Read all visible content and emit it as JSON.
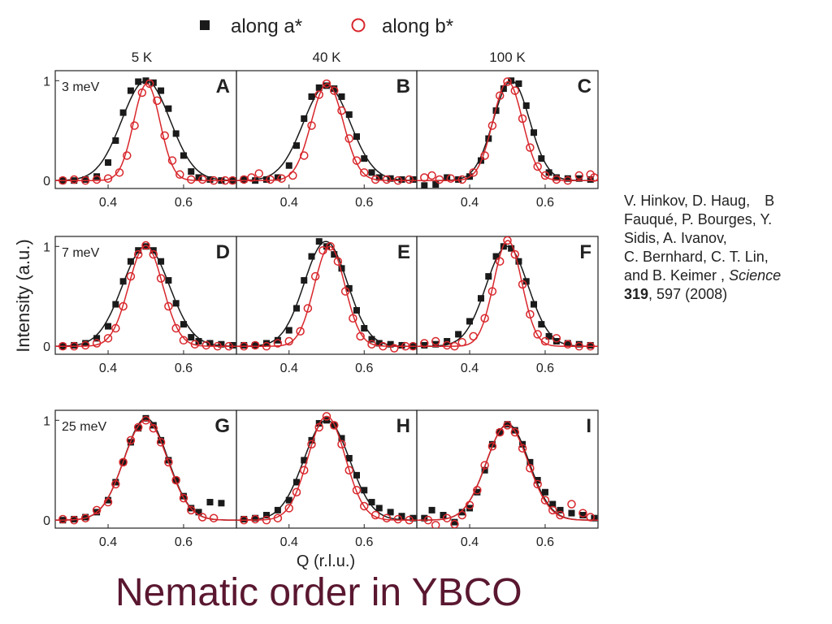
{
  "legend": {
    "series_a_label": "along a*",
    "series_b_label": "along b*"
  },
  "colors": {
    "series_a": "#1a1a1a",
    "series_b": "#d8262b",
    "title": "#5a1730"
  },
  "reference": {
    "line1": "V. Hinkov, D. Haug,",
    "line1_tail": "B",
    "line2": "Fauqué, P. Bourges, Y.",
    "line3": "Sidis, A. Ivanov,",
    "line4": "C. Bernhard, C. T. Lin,",
    "line5_pre": "and B. Keimer ,",
    "line5_journal": "Science",
    "line6_volume": "319",
    "line6_rest": ", 597 (2008)"
  },
  "slide_title": "Nematic order in YBCO",
  "chart_data": {
    "type": "scatter",
    "title": "",
    "xlabel": "Q (r.l.u.)",
    "ylabel": "Intensity (a.u.)",
    "xlim": [
      0.26,
      0.74
    ],
    "ylim": [
      -0.08,
      1.1
    ],
    "xticks": [
      0.4,
      0.6
    ],
    "yticks": [
      0,
      1
    ],
    "legend_position": "top-center",
    "grid": false,
    "column_labels": [
      "5 K",
      "40 K",
      "100 K"
    ],
    "row_labels": [
      "3 meV",
      "7 meV",
      "25 meV"
    ],
    "panels": [
      {
        "label": "A",
        "temperature": "5 K",
        "energy": "3 meV",
        "series": [
          {
            "name": "along a*",
            "marker": "filled-square",
            "x": [
              0.28,
              0.31,
              0.34,
              0.37,
              0.4,
              0.42,
              0.44,
              0.46,
              0.48,
              0.5,
              0.52,
              0.54,
              0.56,
              0.58,
              0.6,
              0.62,
              0.64,
              0.67,
              0.7,
              0.73
            ],
            "y": [
              0.0,
              0.0,
              0.01,
              0.04,
              0.18,
              0.4,
              0.68,
              0.9,
              0.99,
              1.0,
              0.98,
              0.9,
              0.72,
              0.47,
              0.25,
              0.09,
              0.03,
              0.01,
              0.0,
              0.0
            ]
          },
          {
            "name": "along b*",
            "marker": "open-circle",
            "x": [
              0.28,
              0.31,
              0.34,
              0.37,
              0.4,
              0.43,
              0.45,
              0.47,
              0.49,
              0.51,
              0.53,
              0.55,
              0.57,
              0.59,
              0.62,
              0.65,
              0.68,
              0.71,
              0.73
            ],
            "y": [
              0.0,
              0.01,
              0.0,
              0.01,
              0.02,
              0.08,
              0.25,
              0.55,
              0.88,
              0.97,
              0.8,
              0.45,
              0.2,
              0.06,
              0.01,
              0.01,
              0.0,
              0.0,
              0.0
            ]
          }
        ]
      },
      {
        "label": "B",
        "temperature": "40 K",
        "energy": "3 meV",
        "series": [
          {
            "name": "along a*",
            "marker": "filled-square",
            "x": [
              0.28,
              0.31,
              0.34,
              0.37,
              0.4,
              0.42,
              0.44,
              0.46,
              0.48,
              0.5,
              0.52,
              0.54,
              0.56,
              0.58,
              0.6,
              0.62,
              0.64,
              0.67,
              0.7,
              0.73
            ],
            "y": [
              0.01,
              0.0,
              0.01,
              0.03,
              0.15,
              0.35,
              0.62,
              0.84,
              0.93,
              0.95,
              0.92,
              0.84,
              0.66,
              0.44,
              0.22,
              0.08,
              0.03,
              0.02,
              0.01,
              0.01
            ]
          },
          {
            "name": "along b*",
            "marker": "open-circle",
            "x": [
              0.28,
              0.3,
              0.32,
              0.35,
              0.38,
              0.41,
              0.44,
              0.46,
              0.48,
              0.5,
              0.52,
              0.54,
              0.56,
              0.58,
              0.6,
              0.63,
              0.66,
              0.69,
              0.72
            ],
            "y": [
              0.01,
              0.03,
              0.07,
              0.01,
              0.02,
              0.05,
              0.25,
              0.55,
              0.86,
              0.97,
              0.9,
              0.7,
              0.42,
              0.2,
              0.08,
              0.01,
              0.01,
              0.0,
              0.01
            ]
          }
        ]
      },
      {
        "label": "C",
        "temperature": "100 K",
        "energy": "3 meV",
        "series": [
          {
            "name": "along a*",
            "marker": "filled-square",
            "x": [
              0.28,
              0.31,
              0.34,
              0.37,
              0.4,
              0.43,
              0.45,
              0.47,
              0.49,
              0.51,
              0.53,
              0.55,
              0.57,
              0.59,
              0.61,
              0.63,
              0.66,
              0.69,
              0.72
            ],
            "y": [
              -0.05,
              -0.04,
              0.03,
              0.01,
              0.04,
              0.2,
              0.42,
              0.7,
              0.92,
              1.0,
              0.97,
              0.75,
              0.48,
              0.22,
              0.08,
              0.03,
              0.02,
              0.02,
              0.01
            ]
          },
          {
            "name": "along b*",
            "marker": "open-circle",
            "x": [
              0.28,
              0.3,
              0.32,
              0.35,
              0.38,
              0.41,
              0.44,
              0.46,
              0.48,
              0.5,
              0.52,
              0.54,
              0.56,
              0.58,
              0.6,
              0.63,
              0.66,
              0.69,
              0.72,
              0.73
            ],
            "y": [
              0.03,
              0.05,
              0.01,
              0.02,
              0.01,
              0.08,
              0.25,
              0.55,
              0.85,
              0.99,
              0.9,
              0.62,
              0.33,
              0.14,
              0.05,
              0.01,
              0.0,
              0.05,
              0.06,
              0.03
            ]
          }
        ]
      },
      {
        "label": "D",
        "temperature": "5 K",
        "energy": "7 meV",
        "series": [
          {
            "name": "along a*",
            "marker": "filled-square",
            "x": [
              0.28,
              0.31,
              0.34,
              0.37,
              0.4,
              0.42,
              0.44,
              0.46,
              0.48,
              0.5,
              0.52,
              0.54,
              0.56,
              0.58,
              0.6,
              0.62,
              0.64,
              0.67,
              0.7,
              0.73
            ],
            "y": [
              0.0,
              0.01,
              0.03,
              0.08,
              0.2,
              0.42,
              0.65,
              0.85,
              0.96,
              1.0,
              0.96,
              0.85,
              0.66,
              0.43,
              0.22,
              0.09,
              0.05,
              0.03,
              0.02,
              0.01
            ]
          },
          {
            "name": "along b*",
            "marker": "open-circle",
            "x": [
              0.28,
              0.31,
              0.34,
              0.37,
              0.4,
              0.42,
              0.44,
              0.46,
              0.48,
              0.5,
              0.52,
              0.54,
              0.56,
              0.58,
              0.6,
              0.63,
              0.66,
              0.69,
              0.72
            ],
            "y": [
              0.0,
              0.0,
              0.01,
              0.03,
              0.08,
              0.18,
              0.4,
              0.7,
              0.92,
              1.01,
              0.92,
              0.68,
              0.4,
              0.18,
              0.06,
              0.02,
              0.01,
              0.0,
              0.0
            ]
          }
        ]
      },
      {
        "label": "E",
        "temperature": "40 K",
        "energy": "7 meV",
        "series": [
          {
            "name": "along a*",
            "marker": "filled-square",
            "x": [
              0.28,
              0.31,
              0.34,
              0.37,
              0.4,
              0.42,
              0.44,
              0.46,
              0.48,
              0.5,
              0.52,
              0.54,
              0.56,
              0.58,
              0.6,
              0.62,
              0.64,
              0.67,
              0.7,
              0.73
            ],
            "y": [
              0.01,
              0.01,
              0.03,
              0.06,
              0.16,
              0.38,
              0.66,
              0.9,
              1.05,
              1.0,
              0.92,
              0.78,
              0.58,
              0.36,
              0.18,
              0.07,
              0.03,
              0.02,
              0.01,
              0.0
            ]
          },
          {
            "name": "along b*",
            "marker": "open-circle",
            "x": [
              0.28,
              0.31,
              0.34,
              0.37,
              0.4,
              0.43,
              0.45,
              0.47,
              0.49,
              0.51,
              0.53,
              0.55,
              0.57,
              0.59,
              0.62,
              0.65,
              0.68,
              0.71,
              0.73
            ],
            "y": [
              0.0,
              0.01,
              0.0,
              0.03,
              0.05,
              0.15,
              0.38,
              0.7,
              0.96,
              1.0,
              0.85,
              0.55,
              0.28,
              0.1,
              0.02,
              0.0,
              -0.02,
              0.0,
              0.0
            ]
          }
        ]
      },
      {
        "label": "F",
        "temperature": "100 K",
        "energy": "7 meV",
        "series": [
          {
            "name": "along a*",
            "marker": "filled-square",
            "x": [
              0.28,
              0.31,
              0.34,
              0.37,
              0.4,
              0.43,
              0.45,
              0.47,
              0.49,
              0.51,
              0.53,
              0.55,
              0.57,
              0.59,
              0.61,
              0.63,
              0.66,
              0.69,
              0.72
            ],
            "y": [
              0.01,
              0.02,
              0.05,
              0.12,
              0.25,
              0.48,
              0.7,
              0.9,
              1.0,
              0.98,
              0.85,
              0.65,
              0.42,
              0.22,
              0.1,
              0.05,
              0.03,
              0.02,
              0.01
            ]
          },
          {
            "name": "along b*",
            "marker": "open-circle",
            "x": [
              0.28,
              0.31,
              0.34,
              0.36,
              0.38,
              0.41,
              0.44,
              0.46,
              0.48,
              0.5,
              0.52,
              0.54,
              0.56,
              0.58,
              0.6,
              0.63,
              0.66,
              0.69,
              0.72
            ],
            "y": [
              0.03,
              0.05,
              0.01,
              0.0,
              0.04,
              0.1,
              0.28,
              0.55,
              0.85,
              1.06,
              0.92,
              0.62,
              0.32,
              0.12,
              0.05,
              0.08,
              0.02,
              0.0,
              0.0
            ]
          }
        ]
      },
      {
        "label": "G",
        "temperature": "5 K",
        "energy": "25 meV",
        "series": [
          {
            "name": "along a*",
            "marker": "filled-square",
            "x": [
              0.28,
              0.31,
              0.34,
              0.37,
              0.4,
              0.42,
              0.44,
              0.46,
              0.48,
              0.5,
              0.52,
              0.54,
              0.56,
              0.58,
              0.6,
              0.62,
              0.64,
              0.67,
              0.7
            ],
            "y": [
              0.0,
              0.01,
              0.03,
              0.08,
              0.2,
              0.38,
              0.58,
              0.78,
              0.92,
              1.02,
              0.95,
              0.8,
              0.6,
              0.4,
              0.24,
              0.12,
              0.08,
              0.18,
              0.17
            ]
          },
          {
            "name": "along b*",
            "marker": "open-circle",
            "x": [
              0.28,
              0.31,
              0.34,
              0.37,
              0.4,
              0.42,
              0.44,
              0.46,
              0.48,
              0.5,
              0.52,
              0.54,
              0.56,
              0.58,
              0.6,
              0.62,
              0.65,
              0.68
            ],
            "y": [
              0.01,
              0.0,
              0.02,
              0.1,
              0.18,
              0.36,
              0.58,
              0.8,
              0.93,
              1.0,
              0.92,
              0.78,
              0.58,
              0.4,
              0.22,
              0.1,
              0.03,
              0.02
            ]
          }
        ]
      },
      {
        "label": "H",
        "temperature": "40 K",
        "energy": "25 meV",
        "series": [
          {
            "name": "along a*",
            "marker": "filled-square",
            "x": [
              0.28,
              0.31,
              0.34,
              0.37,
              0.4,
              0.42,
              0.44,
              0.46,
              0.48,
              0.5,
              0.52,
              0.54,
              0.56,
              0.58,
              0.6,
              0.62,
              0.64,
              0.67,
              0.7,
              0.73
            ],
            "y": [
              0.01,
              0.02,
              0.05,
              0.1,
              0.2,
              0.38,
              0.6,
              0.8,
              0.97,
              1.0,
              0.95,
              0.82,
              0.62,
              0.45,
              0.3,
              0.18,
              0.12,
              0.08,
              0.04,
              0.02
            ]
          },
          {
            "name": "along b*",
            "marker": "open-circle",
            "x": [
              0.28,
              0.31,
              0.34,
              0.37,
              0.4,
              0.42,
              0.44,
              0.46,
              0.48,
              0.5,
              0.52,
              0.54,
              0.56,
              0.58,
              0.6,
              0.63,
              0.66,
              0.69,
              0.72
            ],
            "y": [
              0.0,
              0.01,
              0.0,
              0.02,
              0.12,
              0.28,
              0.5,
              0.76,
              0.93,
              1.04,
              0.95,
              0.76,
              0.5,
              0.3,
              0.14,
              0.05,
              0.02,
              0.01,
              0.0
            ]
          }
        ]
      },
      {
        "label": "I",
        "temperature": "100 K",
        "energy": "25 meV",
        "series": [
          {
            "name": "along a*",
            "marker": "filled-square",
            "x": [
              0.28,
              0.3,
              0.33,
              0.36,
              0.38,
              0.4,
              0.42,
              0.44,
              0.46,
              0.48,
              0.5,
              0.52,
              0.54,
              0.56,
              0.58,
              0.6,
              0.62,
              0.64,
              0.67,
              0.7,
              0.73
            ],
            "y": [
              0.02,
              0.1,
              0.05,
              -0.02,
              0.08,
              0.12,
              0.28,
              0.5,
              0.76,
              0.88,
              0.96,
              0.9,
              0.76,
              0.58,
              0.4,
              0.28,
              0.16,
              0.1,
              0.07,
              0.05,
              0.02
            ]
          },
          {
            "name": "along b*",
            "marker": "open-circle",
            "x": [
              0.29,
              0.31,
              0.34,
              0.36,
              0.38,
              0.4,
              0.42,
              0.44,
              0.46,
              0.48,
              0.5,
              0.52,
              0.54,
              0.56,
              0.58,
              0.6,
              0.62,
              0.64,
              0.67,
              0.7,
              0.72
            ],
            "y": [
              0.0,
              -0.05,
              0.02,
              -0.04,
              0.05,
              0.15,
              0.3,
              0.55,
              0.74,
              0.88,
              0.95,
              0.88,
              0.72,
              0.52,
              0.36,
              0.2,
              0.1,
              0.05,
              0.16,
              0.07,
              0.03
            ]
          }
        ]
      }
    ]
  }
}
